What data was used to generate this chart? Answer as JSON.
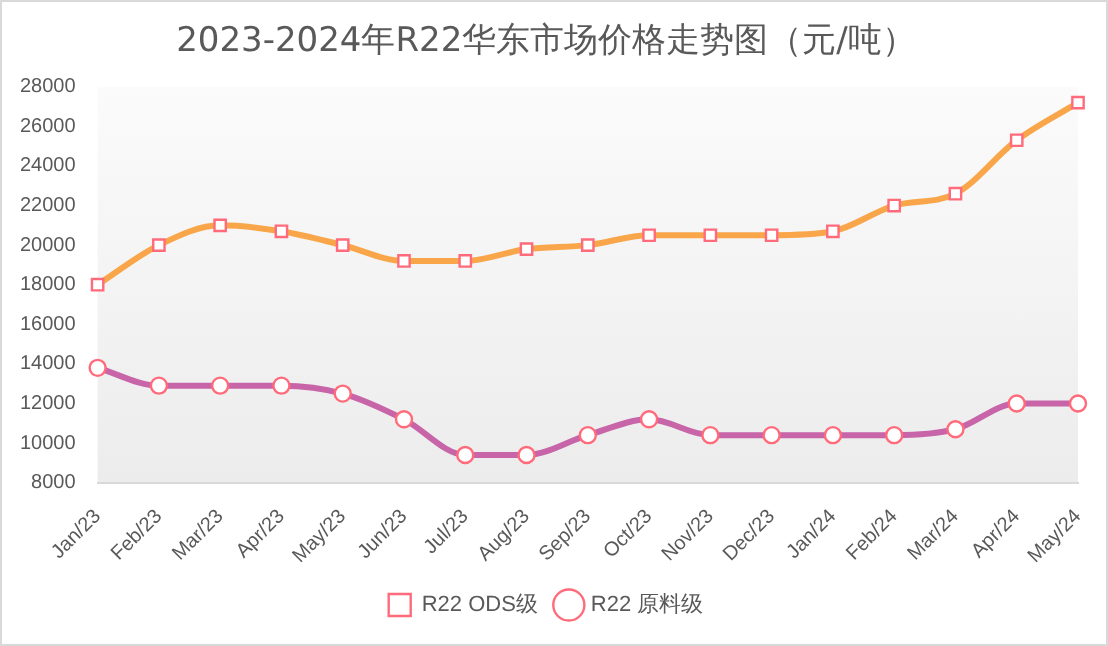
{
  "chart_data": {
    "type": "line",
    "title": "2023-2024年R22华东市场价格走势图（元/吨）",
    "categories": [
      "Jan/23",
      "Feb/23",
      "Mar/23",
      "Apr/23",
      "May/23",
      "Jun/23",
      "Jul/23",
      "Aug/23",
      "Sep/23",
      "Oct/23",
      "Nov/23",
      "Dec/23",
      "Jan/24",
      "Feb/24",
      "Mar/24",
      "Apr/24",
      "May/24"
    ],
    "series": [
      {
        "name": "R22 ODS级",
        "color": "#f9a64a",
        "marker": "square",
        "values": [
          18000,
          20000,
          21000,
          20700,
          20000,
          19200,
          19200,
          19800,
          20000,
          20500,
          20500,
          20500,
          20700,
          22000,
          22600,
          25300,
          27200
        ]
      },
      {
        "name": "R22 原料级",
        "color": "#c864a8",
        "marker": "circle",
        "values": [
          13800,
          12900,
          12900,
          12900,
          12500,
          11200,
          9400,
          9400,
          10400,
          11200,
          10400,
          10400,
          10400,
          10400,
          10700,
          12000,
          12000
        ]
      }
    ],
    "ylim": [
      8000,
      28000
    ],
    "yticks": [
      8000,
      10000,
      12000,
      14000,
      16000,
      18000,
      20000,
      22000,
      24000,
      26000,
      28000
    ],
    "grid": false,
    "legend": "bottom"
  }
}
